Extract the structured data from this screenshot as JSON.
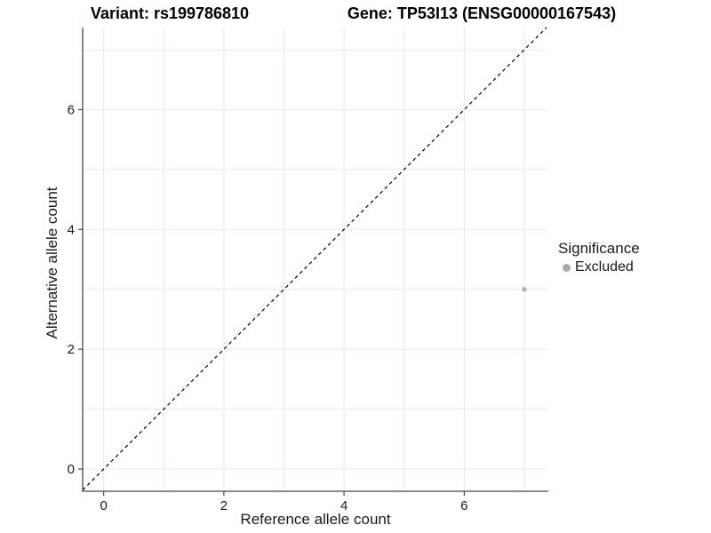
{
  "chart_data": {
    "type": "scatter",
    "title_left": "Variant: rs199786810",
    "title_right": "Gene: TP53I13 (ENSG00000167543)",
    "xlabel": "Reference allele count",
    "ylabel": "Alternative allele count",
    "xlim": [
      -0.35,
      7.4
    ],
    "ylim": [
      -0.37,
      7.37
    ],
    "x_ticks": [
      0,
      2,
      4,
      6
    ],
    "y_ticks": [
      0,
      2,
      4,
      6
    ],
    "gridlines_x": [
      0,
      1,
      2,
      3,
      4,
      5,
      6,
      7
    ],
    "gridlines_y": [
      0,
      1,
      2,
      3,
      4,
      5,
      6,
      7
    ],
    "grid": true,
    "identity_line": {
      "style": "dashed",
      "from": [
        -0.35,
        -0.35
      ],
      "to": [
        7.37,
        7.37
      ],
      "color": "#000000"
    },
    "points": [
      {
        "x": 7,
        "y": 3,
        "significance": "Excluded",
        "color": "#b0b0b0",
        "radius": 2.7
      }
    ],
    "legend": {
      "title": "Significance",
      "position": "right",
      "entries": [
        {
          "label": "Excluded",
          "color": "#a9a9a9"
        }
      ]
    },
    "colors": {
      "gridline": "#e8e8e8",
      "axis_line": "#474747",
      "tick_label": "#1a1a1a",
      "background": "#ffffff"
    }
  }
}
